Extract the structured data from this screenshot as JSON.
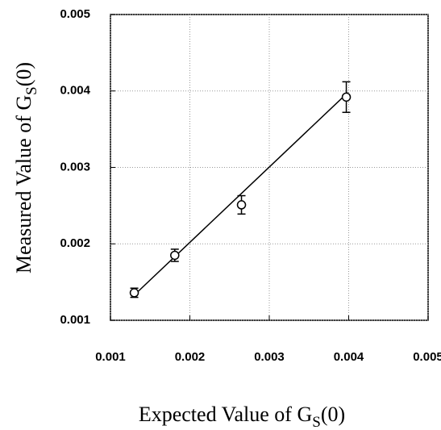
{
  "chart_data": {
    "type": "scatter",
    "xlabel": {
      "prefix": "Expected Value of G",
      "subscript": "S",
      "suffix": "(0)"
    },
    "ylabel": {
      "prefix": "Measured Value of G",
      "subscript": "S",
      "suffix": "(0)"
    },
    "x": [
      0.0013,
      0.00181,
      0.00265,
      0.00397
    ],
    "values": [
      0.00136,
      0.00185,
      0.00251,
      0.00392
    ],
    "errors": [
      6e-05,
      8e-05,
      0.00012,
      0.0002
    ],
    "fit_line": {
      "x": [
        0.00128,
        0.00399
      ],
      "y": [
        0.00131,
        0.00398
      ]
    },
    "color": "#000000",
    "xlim": [
      0.001,
      0.005
    ],
    "ylim": [
      0.001,
      0.005
    ],
    "xticks": [
      0.001,
      0.002,
      0.003,
      0.004,
      0.005
    ],
    "yticks": [
      0.001,
      0.002,
      0.003,
      0.004,
      0.005
    ],
    "grid": true
  }
}
